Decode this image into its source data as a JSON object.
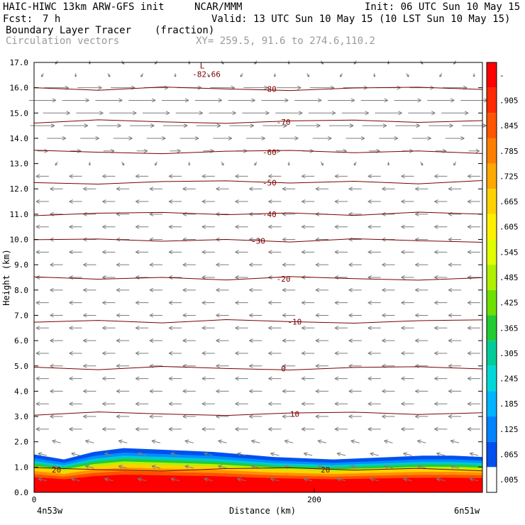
{
  "header": {
    "model": "HAIC-HIWC 13km ARW-GFS init",
    "org": "NCAR/MMM",
    "init": "Init: 06 UTC Sun 10 May 15",
    "fcst_label": "Fcst:",
    "fcst_value": "7 h",
    "valid": "Valid: 13 UTC Sun 10 May 15 (10 LST Sun 10 May 15)",
    "field_name": "Boundary Layer Tracer",
    "field_units": "(fraction)",
    "vector_label": "Circulation vectors",
    "xy_text": "XY= 259.5, 91.6 to 274.6,110.2"
  },
  "chart_data": {
    "type": "heatmap",
    "ylabel": "Height (km)",
    "xlabel": "Distance (km)",
    "ylim": [
      0,
      17
    ],
    "xlim": [
      0,
      320
    ],
    "y_ticks": [
      "0.0",
      "1.0",
      "2.0",
      "3.0",
      "4.0",
      "5.0",
      "6.0",
      "7.0",
      "8.0",
      "9.0",
      "10.0",
      "11.0",
      "12.0",
      "13.0",
      "14.0",
      "15.0",
      "16.0",
      "17.0"
    ],
    "x_ticks": [
      {
        "value": 0,
        "label": "0"
      },
      {
        "value": 200,
        "label": "200"
      }
    ],
    "x_end_labels": {
      "left": "4n53w",
      "right": "6n51w"
    },
    "max_marker": {
      "letter": "L",
      "value": "-82.66",
      "x": 120,
      "y": 16.7
    },
    "temperature_contours": [
      {
        "value": -80,
        "label": "-80",
        "y": 15.95,
        "label_x": 168
      },
      {
        "value": -70,
        "label": "-70",
        "y": 14.65,
        "label_x": 178
      },
      {
        "value": -60,
        "label": "-60",
        "y": 13.45,
        "label_x": 168
      },
      {
        "value": -50,
        "label": "-50",
        "y": 12.25,
        "label_x": 168
      },
      {
        "value": -40,
        "label": "-40",
        "y": 11.0,
        "label_x": 168
      },
      {
        "value": -30,
        "label": "-30",
        "y": 9.95,
        "label_x": 160
      },
      {
        "value": -20,
        "label": "-20",
        "y": 8.45,
        "label_x": 178
      },
      {
        "value": -10,
        "label": "-10",
        "y": 6.75,
        "label_x": 186
      },
      {
        "value": 0,
        "label": "0",
        "y": 4.9,
        "label_x": 178
      },
      {
        "value": 10,
        "label": "10",
        "y": 3.1,
        "label_x": 186
      },
      {
        "value": 20,
        "label": "20",
        "y": 0.9,
        "label_x": 208
      }
    ],
    "extra_contour_labels": [
      {
        "label": "20",
        "x": 16,
        "y": 0.9
      }
    ],
    "colorbar": {
      "labels": [
        "-",
        ".905",
        ".845",
        ".785",
        ".725",
        ".665",
        ".605",
        ".545",
        ".485",
        ".425",
        ".365",
        ".305",
        ".245",
        ".185",
        ".125",
        ".065",
        ".005"
      ],
      "colors": [
        "#ff0000",
        "#ff2a00",
        "#ff5400",
        "#ff7e00",
        "#ffa800",
        "#ffd200",
        "#fff000",
        "#e0ff00",
        "#aef000",
        "#6ee000",
        "#22cc33",
        "#00cc99",
        "#00d8d8",
        "#00b4ff",
        "#0084ff",
        "#0050f0",
        "#ffffff"
      ]
    },
    "tracer_layer": {
      "top_y": [
        1.5,
        1.3,
        1.6,
        1.75,
        1.7,
        1.65,
        1.6,
        1.5,
        1.4,
        1.35,
        1.3,
        1.35,
        1.4,
        1.45,
        1.45,
        1.4
      ]
    },
    "wind_bands": [
      {
        "y": 15.9,
        "dir": 1,
        "len": 0.9
      },
      {
        "y": 15.3,
        "dir": 1,
        "len": 1.0
      },
      {
        "y": 14.8,
        "dir": 1,
        "len": 1.0
      },
      {
        "y": 14.35,
        "dir": 1,
        "len": 0.9
      },
      {
        "y": 13.95,
        "dir": 1,
        "len": 0.7
      },
      {
        "y": 13.45,
        "dir": 1,
        "len": 0.4
      }
    ]
  }
}
